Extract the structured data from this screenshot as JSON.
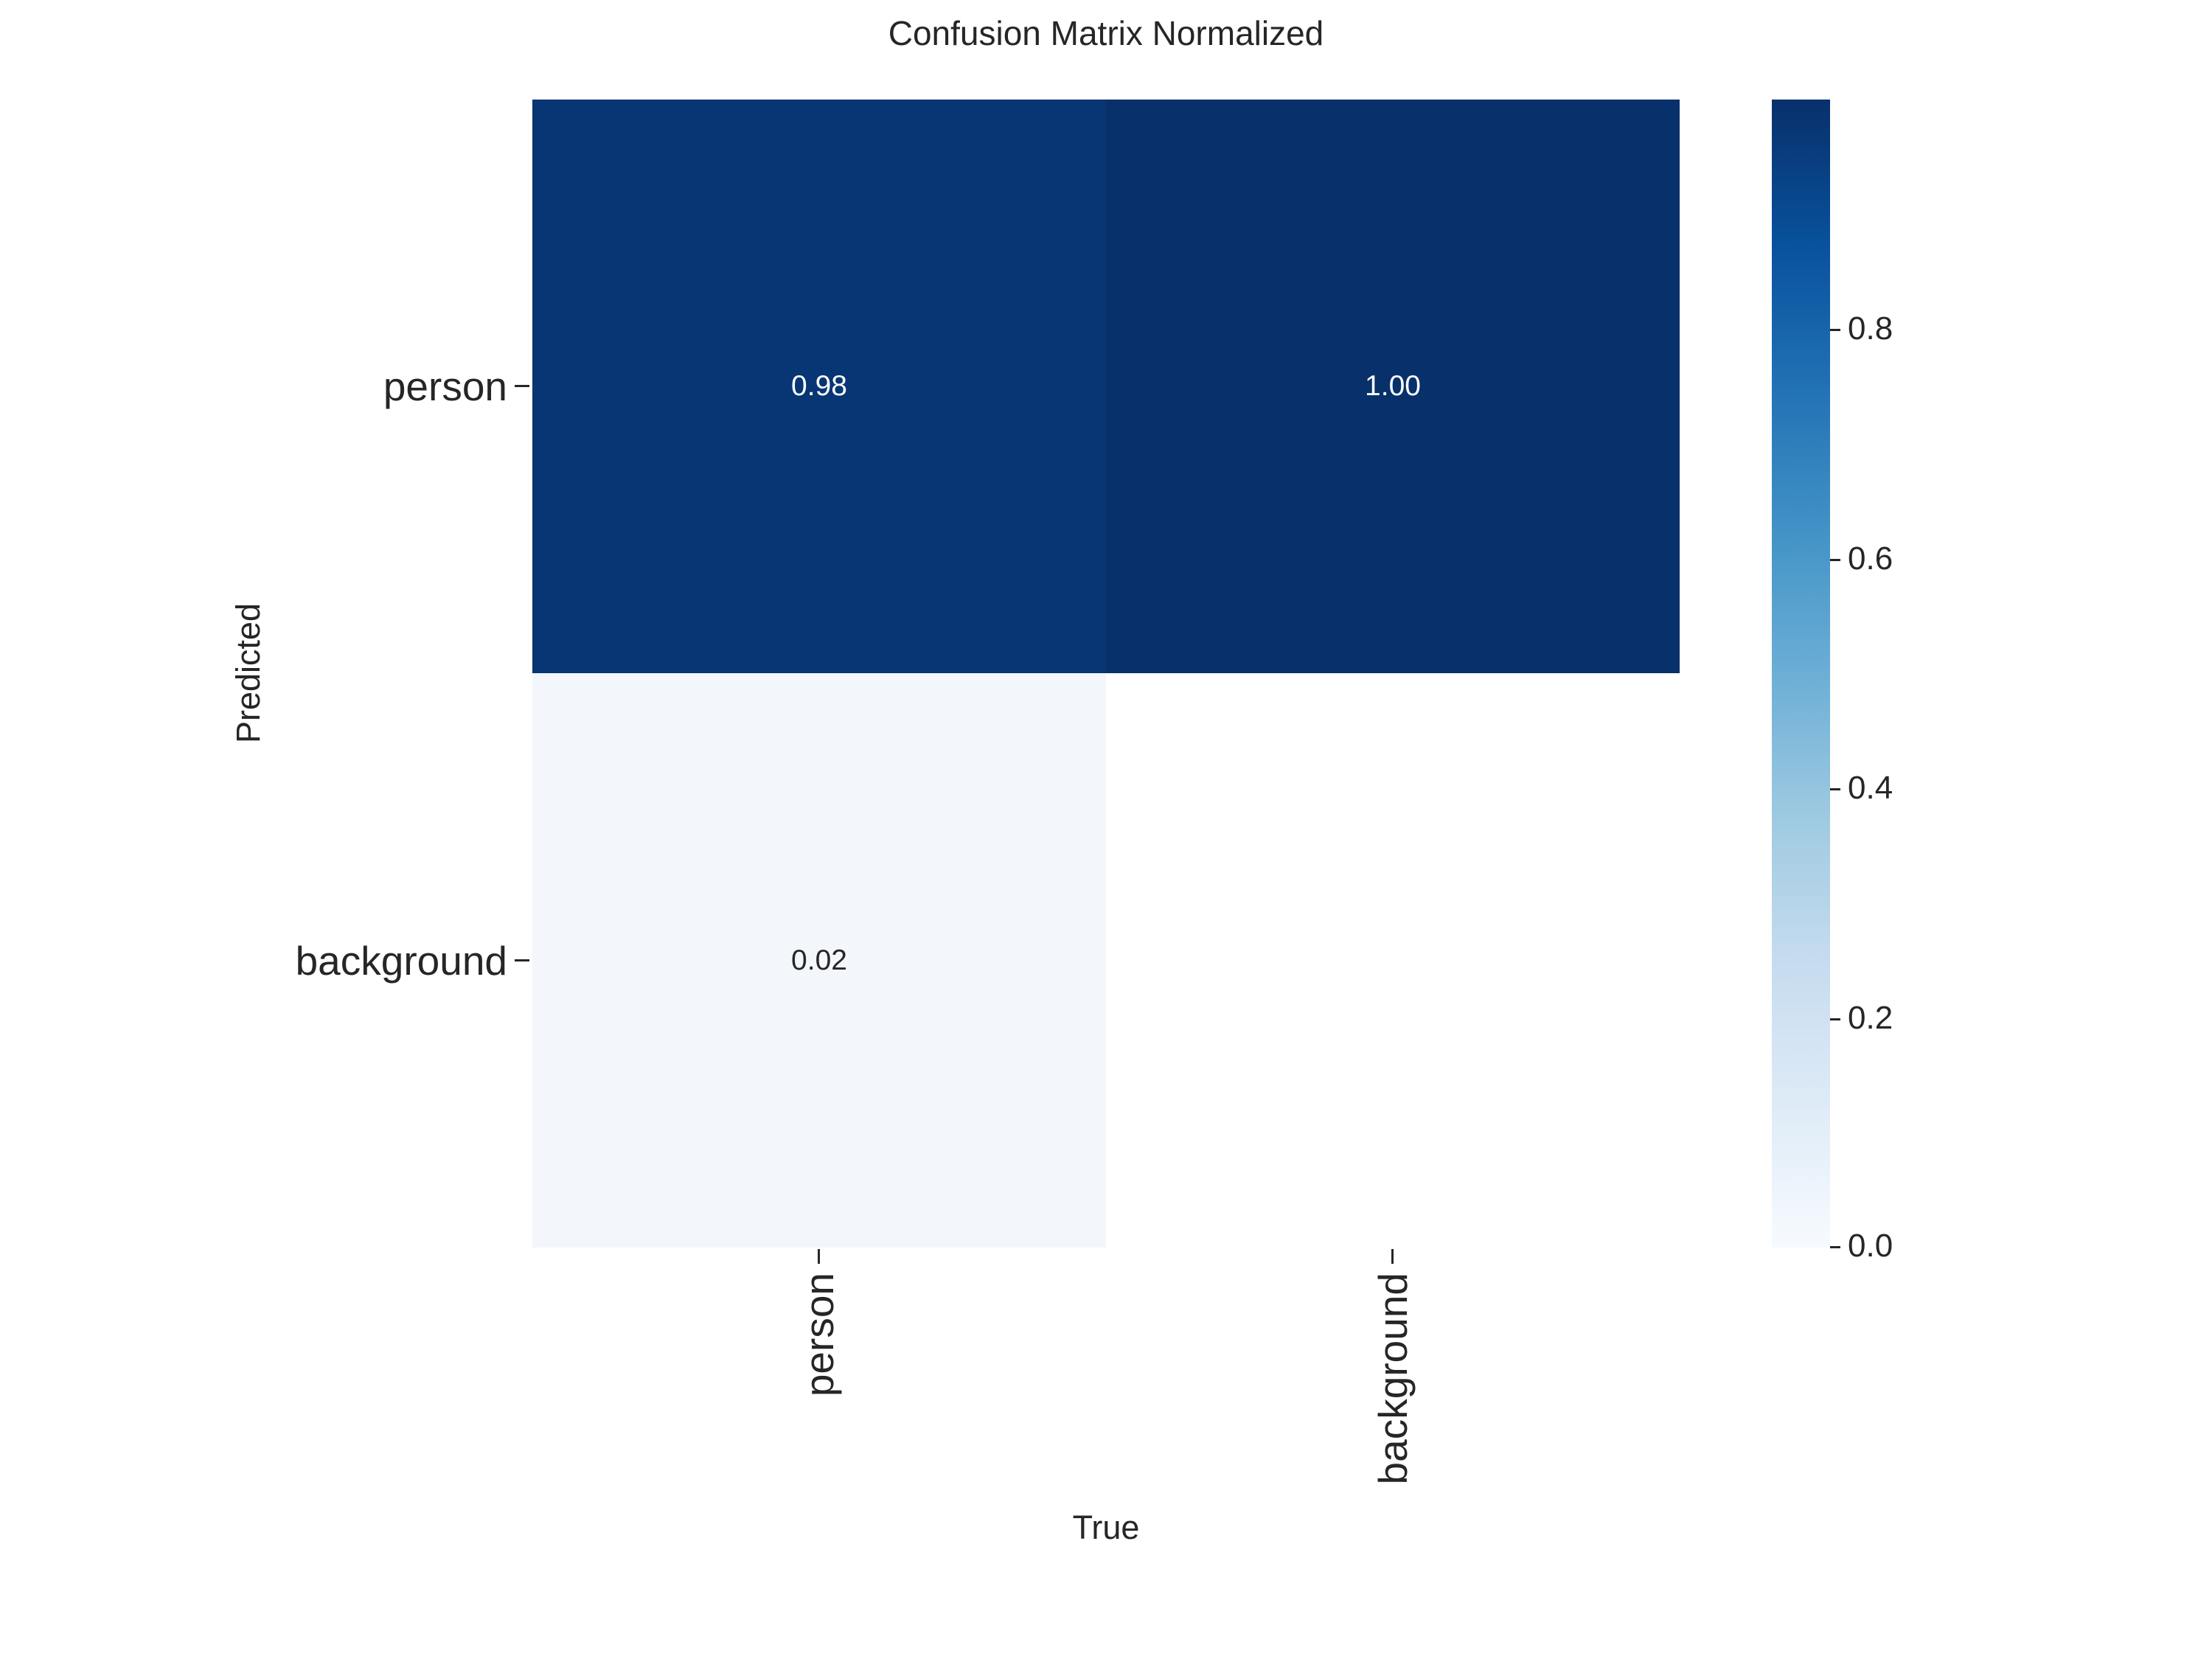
{
  "title": "Confusion Matrix Normalized",
  "x_axis": {
    "label": "True",
    "ticks": [
      "person",
      "background"
    ]
  },
  "y_axis": {
    "label": "Predicted",
    "ticks": [
      "person",
      "background"
    ]
  },
  "cells": {
    "r0c0": "0.98",
    "r0c1": "1.00",
    "r1c0": "0.02",
    "r1c1": ""
  },
  "colorbar": {
    "ticks": [
      "0.0",
      "0.2",
      "0.4",
      "0.6",
      "0.8"
    ]
  },
  "colors": {
    "cell_r0c0": "#083573",
    "cell_r0c1": "#08306b",
    "cell_r1c0": "#f3f7fc",
    "cell_r1c1": "#ffffff",
    "annot_on_dark": "#ffffff",
    "annot_on_light": "#262626",
    "text": "#262626",
    "colorbar_gradient": "linear-gradient(to top, #f7fbff 0%, #deebf7 12.5%, #c6dbef 25%, #9ecae1 37.5%, #6baed6 50%, #4292c6 62.5%, #2171b5 75%, #08519c 87.5%, #08306b 100%)"
  },
  "chart_data": {
    "type": "heatmap",
    "title": "Confusion Matrix Normalized",
    "xlabel": "True",
    "ylabel": "Predicted",
    "x_categories": [
      "person",
      "background"
    ],
    "y_categories": [
      "person",
      "background"
    ],
    "values": [
      [
        0.98,
        1.0
      ],
      [
        0.02,
        null
      ]
    ],
    "cell_labels": [
      [
        "0.98",
        "1.00"
      ],
      [
        "0.02",
        ""
      ]
    ],
    "colormap": "Blues",
    "vmin": 0.0,
    "vmax": 1.0,
    "colorbar_ticks": [
      0.0,
      0.2,
      0.4,
      0.6,
      0.8
    ],
    "legend_position": "right-colorbar",
    "grid": false,
    "notes": "bottom-right cell (background/background) is blank/NaN, rendered white"
  }
}
